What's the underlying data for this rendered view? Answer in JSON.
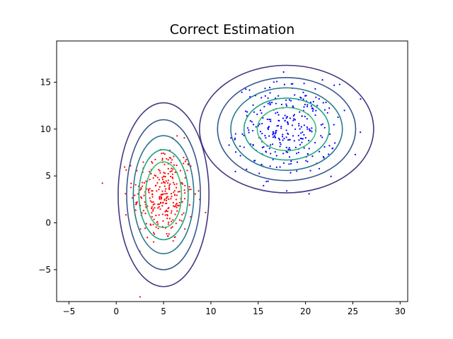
{
  "chart_data": {
    "type": "scatter",
    "title": "Correct Estimation",
    "xlabel": "",
    "ylabel": "",
    "xlim": [
      -6.3,
      30.8
    ],
    "ylim": [
      -8.4,
      19.4
    ],
    "xticks": [
      -5,
      0,
      5,
      10,
      15,
      20,
      25,
      30
    ],
    "yticks": [
      -5,
      0,
      5,
      10,
      15
    ],
    "grid": false,
    "legend": "none",
    "series": [
      {
        "color": "#ff0000",
        "center": [
          5,
          3
        ],
        "std": [
          1.6,
          2.6
        ],
        "count": 300,
        "contour_semi_axes": [
          [
            4.8,
            9.8
          ],
          [
            3.9,
            8.0
          ],
          [
            3.2,
            6.3
          ],
          [
            2.6,
            4.8
          ],
          [
            1.9,
            3.5
          ]
        ]
      },
      {
        "color": "#0000ff",
        "center": [
          18,
          10
        ],
        "std": [
          2.6,
          2.4
        ],
        "count": 300,
        "contour_semi_axes": [
          [
            9.2,
            6.8
          ],
          [
            7.3,
            5.5
          ],
          [
            5.9,
            4.4
          ],
          [
            4.5,
            3.3
          ],
          [
            3.1,
            2.3
          ]
        ]
      }
    ],
    "contour_colors": [
      "#453781",
      "#39568c",
      "#2a788e",
      "#20a387",
      "#3cbb75"
    ]
  }
}
